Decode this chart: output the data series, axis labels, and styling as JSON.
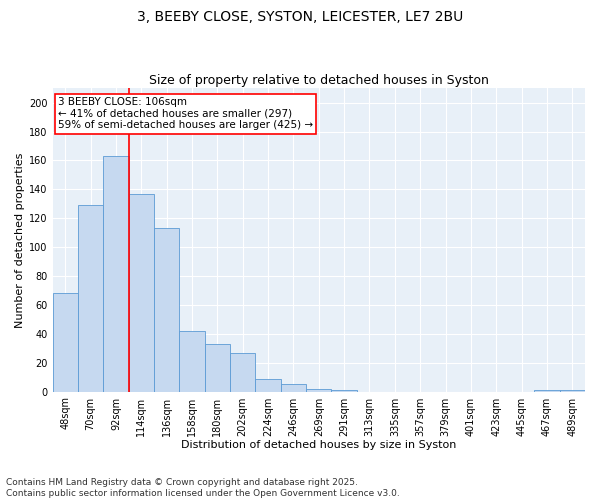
{
  "title_line1": "3, BEEBY CLOSE, SYSTON, LEICESTER, LE7 2BU",
  "title_line2": "Size of property relative to detached houses in Syston",
  "xlabel": "Distribution of detached houses by size in Syston",
  "ylabel": "Number of detached properties",
  "bar_color": "#c6d9f0",
  "bar_edgecolor": "#5b9bd5",
  "background_color": "#e8f0f8",
  "categories": [
    "48sqm",
    "70sqm",
    "92sqm",
    "114sqm",
    "136sqm",
    "158sqm",
    "180sqm",
    "202sqm",
    "224sqm",
    "246sqm",
    "269sqm",
    "291sqm",
    "313sqm",
    "335sqm",
    "357sqm",
    "379sqm",
    "401sqm",
    "423sqm",
    "445sqm",
    "467sqm",
    "489sqm"
  ],
  "values": [
    68,
    129,
    163,
    137,
    113,
    42,
    33,
    27,
    9,
    5,
    2,
    1,
    0,
    0,
    0,
    0,
    0,
    0,
    0,
    1,
    1
  ],
  "ylim": [
    0,
    210
  ],
  "yticks": [
    0,
    20,
    40,
    60,
    80,
    100,
    120,
    140,
    160,
    180,
    200
  ],
  "red_line_x": 2.5,
  "annotation_text": "3 BEEBY CLOSE: 106sqm\n← 41% of detached houses are smaller (297)\n59% of semi-detached houses are larger (425) →",
  "annotation_box_color": "white",
  "annotation_box_edgecolor": "red",
  "footnote": "Contains HM Land Registry data © Crown copyright and database right 2025.\nContains public sector information licensed under the Open Government Licence v3.0.",
  "title_fontsize": 10,
  "subtitle_fontsize": 9,
  "axis_label_fontsize": 8,
  "tick_fontsize": 7,
  "annotation_fontsize": 7.5,
  "footnote_fontsize": 6.5
}
